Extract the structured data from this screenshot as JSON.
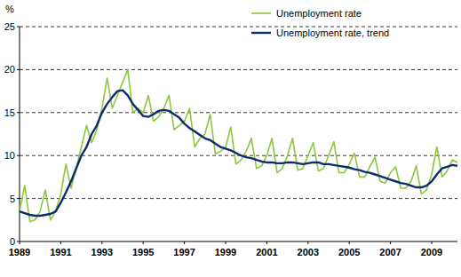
{
  "chart_data": {
    "type": "line",
    "y_label": "%",
    "x": [
      1989,
      1989.25,
      1989.5,
      1989.75,
      1990,
      1990.25,
      1990.5,
      1990.75,
      1991,
      1991.25,
      1991.5,
      1991.75,
      1992,
      1992.25,
      1992.5,
      1992.75,
      1993,
      1993.25,
      1993.5,
      1993.75,
      1994,
      1994.25,
      1994.5,
      1994.75,
      1995,
      1995.25,
      1995.5,
      1995.75,
      1996,
      1996.25,
      1996.5,
      1996.75,
      1997,
      1997.25,
      1997.5,
      1997.75,
      1998,
      1998.25,
      1998.5,
      1998.75,
      1999,
      1999.25,
      1999.5,
      1999.75,
      2000,
      2000.25,
      2000.5,
      2000.75,
      2001,
      2001.25,
      2001.5,
      2001.75,
      2002,
      2002.25,
      2002.5,
      2002.75,
      2003,
      2003.25,
      2003.5,
      2003.75,
      2004,
      2004.25,
      2004.5,
      2004.75,
      2005,
      2005.25,
      2005.5,
      2005.75,
      2006,
      2006.25,
      2006.5,
      2006.75,
      2007,
      2007.25,
      2007.5,
      2007.75,
      2008,
      2008.25,
      2008.5,
      2008.75,
      2009,
      2009.25,
      2009.5,
      2009.75,
      2010,
      2010.25
    ],
    "series": [
      {
        "name": "Unemployment rate",
        "color": "#8dc63f",
        "values": [
          3.5,
          6.5,
          2.3,
          2.5,
          3.5,
          6.0,
          2.5,
          3.5,
          5.5,
          9.0,
          6.2,
          8.5,
          11.0,
          13.5,
          11.5,
          13.0,
          15.5,
          19.0,
          15.5,
          17.0,
          18.5,
          20.0,
          15.0,
          15.5,
          15.0,
          17.0,
          14.0,
          14.5,
          15.5,
          17.0,
          13.0,
          13.5,
          14.0,
          15.5,
          11.0,
          12.0,
          12.5,
          14.8,
          10.2,
          10.5,
          11.0,
          13.3,
          9.0,
          9.5,
          10.5,
          12.0,
          8.5,
          8.8,
          10.0,
          12.0,
          8.0,
          8.5,
          10.0,
          12.0,
          8.3,
          8.5,
          10.0,
          11.5,
          8.2,
          8.5,
          10.0,
          11.6,
          8.0,
          8.0,
          9.0,
          10.3,
          7.5,
          7.5,
          8.7,
          9.8,
          7.0,
          6.8,
          8.0,
          8.7,
          6.2,
          6.2,
          7.0,
          8.8,
          5.5,
          6.0,
          7.8,
          11.0,
          7.5,
          8.2,
          9.5,
          9.2
        ]
      },
      {
        "name": "Unemployment rate, trend",
        "color": "#0c2c6e",
        "values": [
          3.5,
          3.3,
          3.1,
          3.0,
          3.0,
          3.1,
          3.2,
          3.5,
          4.5,
          5.7,
          7.0,
          8.5,
          10.0,
          11.0,
          12.5,
          13.5,
          15.0,
          16.0,
          16.8,
          17.5,
          17.6,
          17.0,
          16.0,
          15.3,
          14.6,
          14.5,
          14.8,
          15.2,
          15.3,
          15.2,
          14.8,
          14.4,
          13.7,
          13.2,
          12.8,
          12.4,
          12.0,
          11.8,
          11.4,
          11.0,
          10.8,
          10.6,
          10.3,
          10.0,
          9.8,
          9.7,
          9.5,
          9.3,
          9.2,
          9.2,
          9.1,
          9.1,
          9.2,
          9.2,
          9.1,
          9.0,
          9.1,
          9.2,
          9.2,
          9.0,
          9.0,
          8.9,
          8.8,
          8.7,
          8.6,
          8.4,
          8.3,
          8.1,
          8.0,
          7.8,
          7.6,
          7.4,
          7.2,
          7.0,
          6.8,
          6.7,
          6.5,
          6.3,
          6.3,
          6.5,
          7.0,
          7.8,
          8.5,
          8.7,
          8.9,
          8.8
        ]
      }
    ],
    "xlim": [
      1989,
      2010.25
    ],
    "xticks": [
      1989,
      1991,
      1993,
      1995,
      1997,
      1999,
      2001,
      2003,
      2005,
      2007,
      2009
    ],
    "ylim": [
      0,
      25
    ],
    "yticks": [
      0,
      5,
      10,
      15,
      20,
      25
    ],
    "grid": true,
    "legend": "upper right"
  }
}
